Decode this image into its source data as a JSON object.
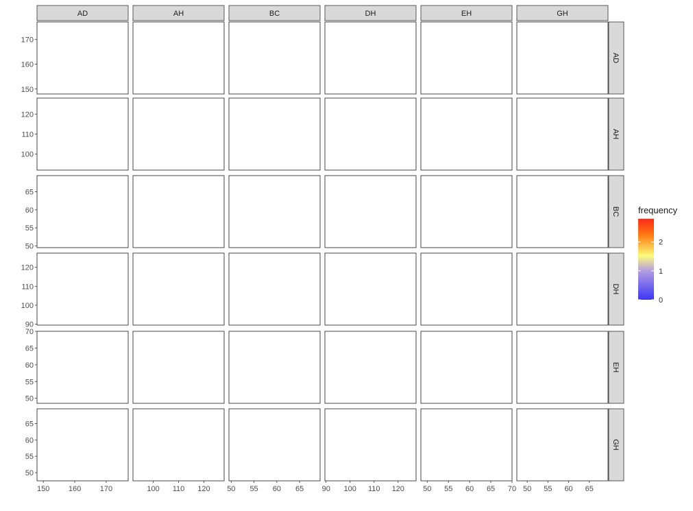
{
  "chart_data": {
    "type": "heatmap",
    "subtype": "scatterplot-matrix-2d-density",
    "variables": [
      "AD",
      "AH",
      "BC",
      "DH",
      "EH",
      "GH"
    ],
    "axes": {
      "AD": {
        "range": [
          148,
          177
        ],
        "ticks": [
          150,
          160,
          170
        ],
        "tick_labels": [
          "150",
          "160",
          "170"
        ]
      },
      "AH": {
        "range": [
          92,
          128
        ],
        "ticks": [
          100,
          110,
          120
        ],
        "tick_labels": [
          "100",
          "110",
          "120"
        ]
      },
      "BC": {
        "range": [
          49.5,
          69.5
        ],
        "ticks": [
          50,
          55,
          60,
          65
        ],
        "tick_labels": [
          "50",
          "55",
          "60",
          "65"
        ]
      },
      "DH": {
        "range": [
          89.5,
          127.5
        ],
        "ticks": [
          90,
          100,
          110,
          120
        ],
        "tick_labels": [
          "90",
          "100",
          "110",
          "120"
        ]
      },
      "EH": {
        "range": [
          48.5,
          70
        ],
        "ticks": [
          50,
          55,
          60,
          65,
          70
        ],
        "tick_labels": [
          "50",
          "55",
          "60",
          "65",
          "70"
        ]
      },
      "GH": {
        "range": [
          47.5,
          69.5
        ],
        "ticks": [
          50,
          55,
          60,
          65
        ],
        "tick_labels": [
          "50",
          "55",
          "60",
          "65"
        ]
      }
    },
    "diagonal_labels": [
      "AD",
      "AH",
      "BC",
      "DH",
      "EH",
      "GH"
    ],
    "legend": {
      "title": "frequency",
      "range": [
        0,
        2.8
      ],
      "ticks": [
        0,
        1,
        2
      ],
      "tick_labels": [
        "0",
        "1",
        "2"
      ],
      "colors": [
        "#3b35f5",
        "#b49ee0",
        "#fbfb7a",
        "#ff7a12",
        "#ff2a1a"
      ],
      "stops": [
        0,
        0.36,
        0.54,
        0.8,
        1
      ]
    },
    "bins_per_axis": 12,
    "seed": 1234567
  }
}
